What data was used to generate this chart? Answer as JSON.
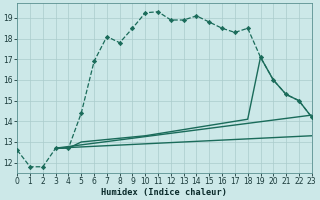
{
  "xlabel": "Humidex (Indice chaleur)",
  "bg_color": "#cce8e8",
  "grid_color": "#aacccc",
  "line_color": "#1a6b5a",
  "xlim": [
    0,
    23
  ],
  "ylim": [
    11.5,
    19.7
  ],
  "xticks": [
    0,
    1,
    2,
    3,
    4,
    5,
    6,
    7,
    8,
    9,
    10,
    11,
    12,
    13,
    14,
    15,
    16,
    17,
    18,
    19,
    20,
    21,
    22,
    23
  ],
  "yticks": [
    12,
    13,
    14,
    15,
    16,
    17,
    18,
    19
  ],
  "curve_x": [
    0,
    1,
    2,
    3,
    4,
    5,
    6,
    7,
    8,
    9,
    10,
    11,
    12,
    13,
    14,
    15,
    16,
    17,
    18,
    19,
    20,
    21,
    22,
    23
  ],
  "curve_y": [
    12.6,
    11.8,
    11.8,
    12.7,
    12.7,
    14.4,
    16.9,
    18.1,
    17.8,
    18.5,
    19.25,
    19.3,
    18.9,
    18.9,
    19.1,
    18.8,
    18.5,
    18.3,
    18.5,
    17.1,
    16.0,
    15.3,
    15.0,
    14.2
  ],
  "fan_lines": [
    {
      "x": [
        3,
        4,
        5,
        10,
        11,
        12,
        13,
        14,
        15,
        16,
        17,
        18,
        19,
        20,
        21,
        22,
        23
      ],
      "y": [
        12.7,
        12.7,
        13.0,
        13.3,
        13.4,
        13.5,
        13.6,
        13.7,
        13.8,
        13.9,
        14.0,
        14.1,
        17.1,
        16.0,
        15.3,
        15.0,
        14.2
      ]
    },
    {
      "x": [
        3,
        23
      ],
      "y": [
        12.7,
        14.3
      ]
    },
    {
      "x": [
        3,
        23
      ],
      "y": [
        12.7,
        13.3
      ]
    }
  ]
}
